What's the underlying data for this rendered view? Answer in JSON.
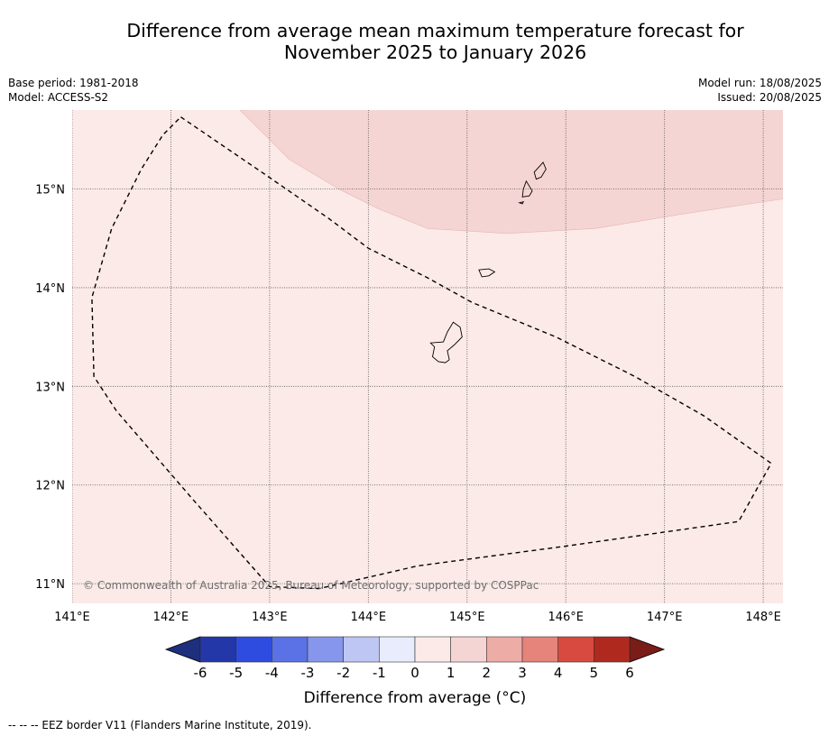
{
  "title": "Difference from average mean maximum temperature forecast for November 2025 to January 2026",
  "title_line1": "Difference from average mean maximum temperature forecast for",
  "title_line2": "November 2025 to January 2026",
  "base_period": "Base period: 1981-2018",
  "model": "Model: ACCESS-S2",
  "model_run": "Model run: 18/08/2025",
  "issued": "Issued: 20/08/2025",
  "copyright": "© Commonwealth of Australia 2025, Bureau of Meteorology, supported by COSPPac",
  "footnote": "--  --  -- EEZ border V11 (Flanders Marine Institute, 2019).",
  "map": {
    "lon_range": [
      141.0,
      148.2
    ],
    "lat_range": [
      10.8,
      15.8
    ],
    "lon_ticks": [
      {
        "value": 141,
        "label": "141°E"
      },
      {
        "value": 142,
        "label": "142°E"
      },
      {
        "value": 143,
        "label": "143°E"
      },
      {
        "value": 144,
        "label": "144°E"
      },
      {
        "value": 145,
        "label": "145°E"
      },
      {
        "value": 146,
        "label": "146°E"
      },
      {
        "value": 147,
        "label": "147°E"
      },
      {
        "value": 148,
        "label": "148°E"
      }
    ],
    "lat_ticks": [
      {
        "value": 15,
        "label": "15°N"
      },
      {
        "value": 14,
        "label": "14°N"
      },
      {
        "value": 13,
        "label": "13°N"
      },
      {
        "value": 12,
        "label": "12°N"
      },
      {
        "value": 11,
        "label": "11°N"
      }
    ],
    "fill_colors": {
      "base_0_to_1": "#fbeae8",
      "zone_1_to_2": "#f5d5d3"
    },
    "warm_zone_boundary": [
      [
        142.7,
        15.8
      ],
      [
        143.0,
        15.5
      ],
      [
        143.2,
        15.3
      ],
      [
        143.7,
        15.0
      ],
      [
        144.1,
        14.8
      ],
      [
        144.6,
        14.6
      ],
      [
        145.4,
        14.55
      ],
      [
        146.3,
        14.6
      ],
      [
        147.2,
        14.75
      ],
      [
        148.2,
        14.9
      ]
    ],
    "eez_border": [
      [
        142.1,
        15.73
      ],
      [
        142.95,
        15.15
      ],
      [
        143.6,
        14.7
      ],
      [
        144.0,
        14.4
      ],
      [
        144.6,
        14.1
      ],
      [
        145.05,
        13.85
      ],
      [
        145.9,
        13.5
      ],
      [
        146.7,
        13.1
      ],
      [
        147.4,
        12.7
      ],
      [
        148.08,
        12.22
      ],
      [
        147.75,
        11.63
      ],
      [
        146.0,
        11.38
      ],
      [
        144.5,
        11.18
      ],
      [
        143.5,
        10.95
      ],
      [
        143.0,
        10.97
      ],
      [
        142.2,
        11.88
      ],
      [
        141.45,
        12.75
      ],
      [
        141.22,
        13.1
      ],
      [
        141.2,
        13.9
      ],
      [
        141.4,
        14.6
      ],
      [
        141.7,
        15.2
      ],
      [
        141.92,
        15.55
      ],
      [
        142.1,
        15.73
      ]
    ],
    "islands": [
      {
        "name": "guam",
        "outline": [
          [
            144.86,
            13.65
          ],
          [
            144.93,
            13.6
          ],
          [
            144.95,
            13.5
          ],
          [
            144.87,
            13.42
          ],
          [
            144.8,
            13.36
          ],
          [
            144.82,
            13.27
          ],
          [
            144.78,
            13.24
          ],
          [
            144.71,
            13.25
          ],
          [
            144.65,
            13.3
          ],
          [
            144.67,
            13.4
          ],
          [
            144.63,
            13.44
          ],
          [
            144.76,
            13.45
          ],
          [
            144.8,
            13.55
          ],
          [
            144.86,
            13.65
          ]
        ]
      },
      {
        "name": "rota",
        "outline": [
          [
            145.12,
            14.18
          ],
          [
            145.22,
            14.19
          ],
          [
            145.28,
            14.16
          ],
          [
            145.22,
            14.12
          ],
          [
            145.15,
            14.11
          ],
          [
            145.12,
            14.18
          ]
        ]
      },
      {
        "name": "tinian",
        "outline": [
          [
            145.6,
            15.08
          ],
          [
            145.66,
            14.98
          ],
          [
            145.63,
            14.93
          ],
          [
            145.56,
            14.92
          ],
          [
            145.57,
            15.0
          ],
          [
            145.6,
            15.08
          ]
        ]
      },
      {
        "name": "saipan",
        "outline": [
          [
            145.77,
            15.27
          ],
          [
            145.8,
            15.2
          ],
          [
            145.75,
            15.12
          ],
          [
            145.7,
            15.1
          ],
          [
            145.68,
            15.17
          ],
          [
            145.77,
            15.27
          ]
        ]
      },
      {
        "name": "aguijan",
        "outline": [
          [
            145.53,
            14.86
          ],
          [
            145.57,
            14.87
          ],
          [
            145.56,
            14.85
          ],
          [
            145.53,
            14.86
          ]
        ]
      }
    ]
  },
  "colorbar": {
    "label": "Difference from average (°C)",
    "ticks": [
      "-6",
      "-5",
      "-4",
      "-3",
      "-2",
      "-1",
      "0",
      "1",
      "2",
      "3",
      "4",
      "5",
      "6"
    ],
    "under_color": "#1e2f7d",
    "over_color": "#7a1c18",
    "colors": [
      "#2437a8",
      "#2f4ce0",
      "#5a72e6",
      "#8596ec",
      "#bec6f4",
      "#e8ecfc",
      "#fbeae8",
      "#f5d5d3",
      "#eeaca6",
      "#e6837a",
      "#d84a40",
      "#b0291f"
    ]
  }
}
